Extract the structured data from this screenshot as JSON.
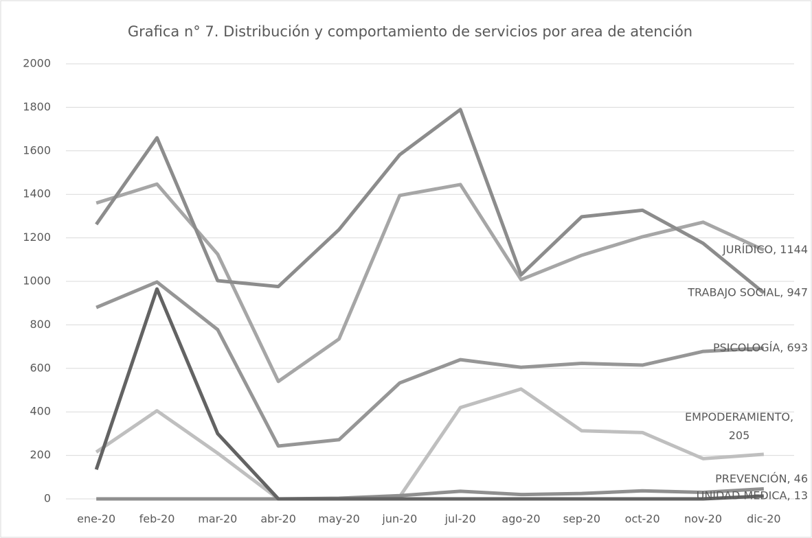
{
  "chart_data": {
    "type": "line",
    "title": "Grafica n° 7. Distribución y comportamiento de servicios por area de atención",
    "categories": [
      "ene-20",
      "feb-20",
      "mar-20",
      "abr-20",
      "may-20",
      "jun-20",
      "jul-20",
      "ago-20",
      "sep-20",
      "oct-20",
      "nov-20",
      "dic-20"
    ],
    "series": [
      {
        "name": "JURÍDICO",
        "color": "#a6a6a6",
        "values": [
          1360,
          1447,
          1125,
          540,
          735,
          1395,
          1445,
          1008,
          1120,
          1205,
          1272,
          1144
        ],
        "end_label": [
          "JURÍDICO, 1144"
        ]
      },
      {
        "name": "TRABAJO SOCIAL",
        "color": "#8c8c8c",
        "values": [
          1262,
          1660,
          1003,
          976,
          1238,
          1582,
          1790,
          1030,
          1297,
          1327,
          1175,
          947
        ],
        "end_label": [
          "TRABAJO SOCIAL, 947"
        ]
      },
      {
        "name": "PSICOLOGÍA",
        "color": "#969696",
        "values": [
          880,
          997,
          778,
          243,
          272,
          533,
          640,
          605,
          623,
          615,
          678,
          693
        ],
        "end_label": [
          "PSICOLOGÍA, 693"
        ]
      },
      {
        "name": "EMPODERAMIENTO",
        "color": "#bfbfbf",
        "values": [
          215,
          405,
          210,
          0,
          0,
          10,
          420,
          505,
          313,
          305,
          185,
          205
        ],
        "end_label": [
          "EMPODERAMIENTO,",
          "205"
        ]
      },
      {
        "name": "PREVENCIÓN",
        "color": "#8f8f8f",
        "values": [
          0,
          0,
          0,
          0,
          3,
          15,
          35,
          20,
          25,
          37,
          30,
          46
        ],
        "end_label": [
          "PREVENCIÓN, 46"
        ]
      },
      {
        "name": "UNIDAD MEDICA",
        "color": "#636363",
        "values": [
          135,
          965,
          300,
          0,
          0,
          0,
          0,
          0,
          0,
          0,
          0,
          13
        ],
        "end_label": [
          "UNIDAD MEDICA, 13"
        ]
      }
    ],
    "ylim": [
      0,
      2000
    ],
    "yticks": [
      0,
      200,
      400,
      600,
      800,
      1000,
      1200,
      1400,
      1600,
      1800,
      2000
    ],
    "grid": true
  }
}
